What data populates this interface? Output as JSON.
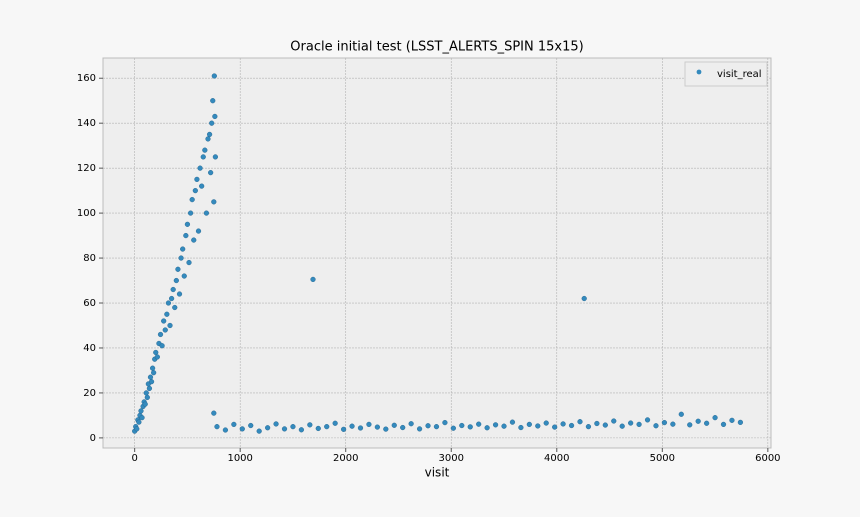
{
  "chart_data": {
    "type": "scatter",
    "title": "Oracle initial test (LSST_ALERTS_SPIN 15x15)",
    "x_label": "visit",
    "x": [
      0,
      10,
      20,
      30,
      40,
      50,
      60,
      70,
      80,
      90,
      100,
      110,
      120,
      130,
      140,
      150,
      160,
      170,
      180,
      190,
      200,
      215,
      230,
      245,
      260,
      275,
      290,
      305,
      320,
      335,
      350,
      365,
      380,
      395,
      410,
      425,
      440,
      455,
      470,
      485,
      500,
      515,
      530,
      545,
      560,
      575,
      590,
      605,
      620,
      635,
      650,
      665,
      680,
      695,
      710,
      720,
      730,
      740,
      750,
      755,
      760,
      765,
      780,
      860,
      940,
      1020,
      1100,
      1180,
      1260,
      1340,
      1420,
      1500,
      1580,
      1660,
      1740,
      1820,
      1900,
      1980,
      2060,
      2140,
      2220,
      2300,
      2380,
      2460,
      2540,
      2620,
      2700,
      2780,
      2860,
      2940,
      3020,
      3100,
      3180,
      3260,
      3340,
      3420,
      3500,
      3580,
      3660,
      3740,
      3820,
      3900,
      3980,
      4060,
      4140,
      4220,
      4300,
      4380,
      4460,
      4540,
      4620,
      4700,
      4780,
      4860,
      4940,
      5020,
      5100,
      5180,
      5260,
      5340,
      5420,
      5500,
      5580,
      5660,
      5740,
      1690,
      4260,
      750
    ],
    "series": [
      {
        "name": "visit_real",
        "color": "#348abd",
        "values": [
          3,
          5,
          4,
          8,
          7,
          10,
          12,
          9,
          14,
          16,
          15,
          20,
          18,
          24,
          22,
          27,
          25,
          31,
          29,
          35,
          38,
          36,
          42,
          46,
          41,
          52,
          48,
          55,
          60,
          50,
          62,
          66,
          58,
          70,
          75,
          64,
          80,
          84,
          72,
          90,
          95,
          78,
          100,
          106,
          88,
          110,
          115,
          92,
          120,
          112,
          125,
          128,
          100,
          133,
          135,
          118,
          140,
          150,
          105,
          161,
          143,
          125,
          5,
          3.5,
          6,
          4,
          5.5,
          3,
          4.5,
          6.2,
          4,
          5,
          3.6,
          5.8,
          4.2,
          5,
          6.5,
          3.8,
          5.2,
          4.4,
          6,
          4.8,
          3.9,
          5.6,
          4.6,
          6.3,
          4,
          5.4,
          5,
          6.8,
          4.3,
          5.5,
          4.9,
          6.1,
          4.5,
          5.8,
          5.2,
          7,
          4.6,
          6,
          5.3,
          6.6,
          4.8,
          6.2,
          5.5,
          7.2,
          5,
          6.4,
          5.7,
          7.5,
          5.2,
          6.6,
          6,
          8,
          5.4,
          6.8,
          6.1,
          10.5,
          5.8,
          7.4,
          6.5,
          9,
          6,
          7.8,
          6.9,
          70.5,
          62,
          11
        ]
      }
    ],
    "xlim": [
      -300,
      6030
    ],
    "ylim": [
      -4.5,
      169
    ],
    "xticks": [
      0,
      1000,
      2000,
      3000,
      4000,
      5000,
      6000
    ],
    "yticks": [
      0,
      20,
      40,
      60,
      80,
      100,
      120,
      140,
      160
    ],
    "grid": true,
    "legend": "upper right"
  }
}
